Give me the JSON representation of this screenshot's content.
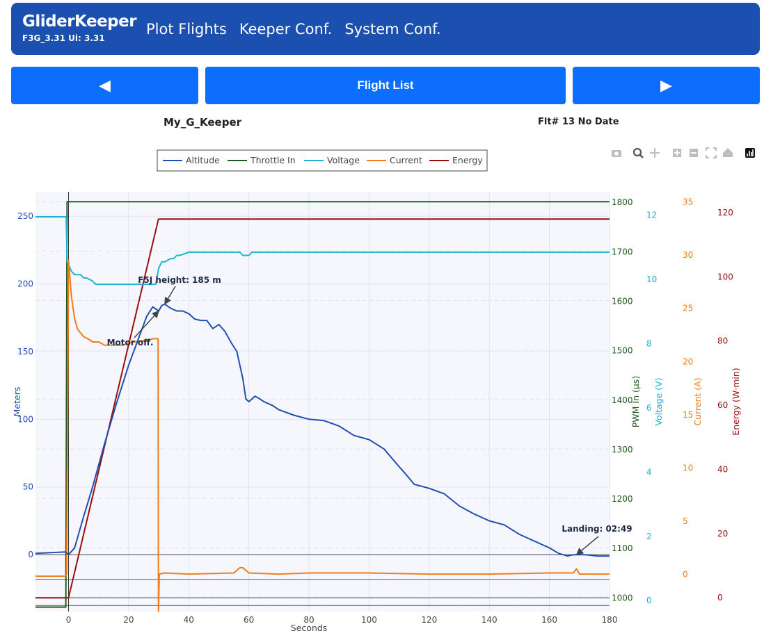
{
  "app": {
    "brand": "GliderKeeper",
    "version": "F3G_3.31 Ui: 3.31",
    "nav": [
      "Plot Flights",
      "Keeper Conf.",
      "System Conf."
    ]
  },
  "controls": {
    "prev_icon": "◀",
    "flight_list_label": "Flight List",
    "next_icon": "▶"
  },
  "info": {
    "model_name": "My_G_Keeper",
    "flight_info": "Flt# 13 No Date"
  },
  "colors": {
    "nav_bg": "#1b4fb0",
    "button_bg": "#0d6efd",
    "altitude": "#1f4fb4",
    "throttle": "#1e5a1e",
    "voltage": "#1cb4d0",
    "current": "#f07c1a",
    "energy": "#9a0e0e"
  },
  "toolbar_icons": [
    "camera-icon",
    "zoom-icon",
    "pan-icon",
    "zoom-in-icon",
    "zoom-out-icon",
    "autoscale-icon",
    "reset-axes-icon",
    "plotly-logo-icon"
  ],
  "chart_data": {
    "type": "line",
    "title": "",
    "legend": [
      "Altitude",
      "Throttle In",
      "Voltage",
      "Current",
      "Energy"
    ],
    "legend_position": "top",
    "grid": true,
    "x": {
      "label": "Seconds",
      "range": [
        -11,
        180
      ],
      "ticks": [
        0,
        20,
        40,
        60,
        80,
        100,
        120,
        140,
        160,
        180
      ]
    },
    "axes": {
      "altitude": {
        "label": "Meters",
        "range": [
          -42,
          268
        ],
        "ticks": [
          0,
          50,
          100,
          150,
          200,
          250
        ]
      },
      "throttle": {
        "label": "PWM In (µs)",
        "range": [
          971,
          1820
        ],
        "ticks": [
          1000,
          1100,
          1200,
          1300,
          1400,
          1500,
          1600,
          1700,
          1800
        ]
      },
      "voltage": {
        "label": "Voltage (V)",
        "range": [
          -0.19,
          12.88
        ],
        "ticks": [
          0,
          2,
          4,
          6,
          8,
          10,
          12
        ]
      },
      "current": {
        "label": "Current (A)",
        "range": [
          -3.02,
          36.4
        ],
        "ticks": [
          0,
          5,
          10,
          15,
          20,
          25,
          30,
          35
        ]
      },
      "energy": {
        "label": "Energy (W·min)",
        "range": [
          -4.29,
          126.5
        ],
        "ticks": [
          0,
          20,
          40,
          60,
          80,
          100,
          120
        ]
      }
    },
    "series": [
      {
        "name": "Altitude",
        "axis": "altitude",
        "x": [
          -11,
          -1,
          0,
          2,
          5,
          8,
          12,
          16,
          20,
          24,
          26,
          28,
          30,
          31,
          32,
          34,
          36,
          38,
          40,
          42,
          44,
          46,
          48,
          50,
          52,
          54,
          56,
          58,
          59,
          60,
          61,
          62,
          63,
          65,
          68,
          70,
          75,
          80,
          85,
          90,
          95,
          100,
          105,
          110,
          112,
          115,
          120,
          125,
          130,
          135,
          140,
          145,
          150,
          155,
          160,
          163,
          166,
          168,
          172,
          176,
          180
        ],
        "y": [
          1,
          2,
          0,
          5,
          28,
          50,
          82,
          112,
          140,
          164,
          176,
          183,
          180,
          184,
          185,
          182,
          180,
          180,
          178,
          174,
          173,
          173,
          167,
          170,
          165,
          157,
          150,
          130,
          115,
          113,
          115,
          117,
          116,
          113,
          110,
          107,
          103,
          100,
          99,
          95,
          88,
          85,
          78,
          65,
          60,
          52,
          49,
          45,
          36,
          30,
          25,
          22,
          15,
          10,
          5,
          1,
          -1,
          0,
          0,
          -1,
          -1
        ]
      },
      {
        "name": "Throttle In",
        "axis": "throttle",
        "x": [
          -11,
          -0.9,
          -0.5,
          180
        ],
        "y": [
          980,
          980,
          1800,
          1800
        ]
      },
      {
        "name": "Voltage",
        "axis": "voltage",
        "x": [
          -11,
          -0.8,
          -0.5,
          1,
          2,
          4,
          5,
          6,
          8,
          9,
          12,
          16,
          20,
          24,
          29,
          30,
          31,
          32,
          34,
          35,
          36,
          37,
          40,
          57,
          58,
          59,
          60,
          61,
          62,
          80,
          92,
          95,
          100,
          110,
          120,
          130,
          140,
          150,
          160,
          170,
          180
        ],
        "y": [
          12.1,
          12.1,
          10.7,
          10.4,
          10.3,
          10.3,
          10.2,
          10.2,
          10.1,
          10.0,
          10.0,
          10.0,
          10.0,
          10.0,
          10.0,
          10.5,
          10.7,
          10.7,
          10.8,
          10.8,
          10.9,
          10.9,
          11.0,
          11.0,
          10.9,
          10.9,
          10.9,
          11.0,
          11.0,
          11.0,
          11.0,
          11.0,
          11.0,
          11.0,
          11.0,
          11.0,
          11.0,
          11.0,
          11.0,
          11.0,
          11.0
        ]
      },
      {
        "name": "Current",
        "axis": "current",
        "x": [
          -11,
          -1,
          -0.6,
          0,
          1,
          2,
          3,
          5,
          7,
          8,
          10,
          12,
          14,
          16,
          18,
          20,
          22,
          24,
          26,
          28,
          29.8,
          29.9,
          30.2,
          32,
          40,
          55,
          57,
          58,
          60,
          70,
          80,
          100,
          120,
          140,
          160,
          168,
          169,
          170,
          180
        ],
        "y": [
          0.3,
          0.3,
          0.5,
          30,
          26.5,
          24.5,
          23.5,
          22.8,
          22.5,
          22.3,
          22.3,
          22.0,
          22.0,
          22.0,
          22.0,
          22.2,
          22.3,
          22.4,
          22.4,
          22.6,
          22.6,
          -3,
          0.5,
          0.6,
          0.5,
          0.6,
          1.1,
          1.1,
          0.6,
          0.5,
          0.6,
          0.6,
          0.5,
          0.5,
          0.6,
          0.6,
          1.0,
          0.5,
          0.5
        ]
      },
      {
        "name": "Energy",
        "axis": "energy",
        "x": [
          -11,
          0,
          29.9,
          180
        ],
        "y": [
          0,
          0,
          118,
          118
        ]
      }
    ],
    "annotations": [
      {
        "text": "F5J height: 185 m",
        "x": 32,
        "y": 185
      },
      {
        "text": "Motor off.",
        "x": 30,
        "y": 180
      },
      {
        "text": "Landing: 02:49",
        "x": 169,
        "y": 0
      }
    ]
  }
}
